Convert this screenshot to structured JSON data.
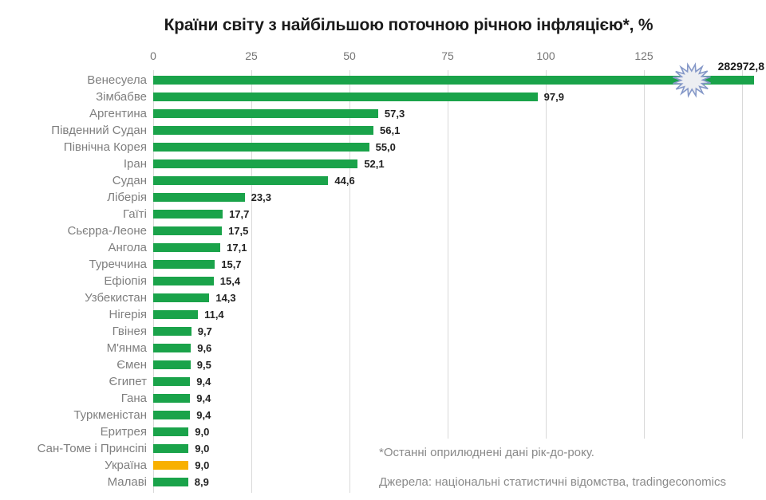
{
  "title": "Країни світу з найбільшою поточною річною інфляцією*, %",
  "chart_data": {
    "type": "bar",
    "orientation": "horizontal",
    "title": "Країни світу з найбільшою поточною річною інфляцією*, %",
    "xlabel": "",
    "ylabel": "",
    "xlim": [
      0,
      150
    ],
    "axis_tick_labels": [
      "0",
      "25",
      "50",
      "75",
      "100",
      "125"
    ],
    "axis_tick_values": [
      0,
      25,
      50,
      75,
      100,
      125
    ],
    "gridline_values": [
      0,
      25,
      50,
      75,
      100,
      125,
      150
    ],
    "grid": true,
    "legend": false,
    "categories": [
      "Венесуела",
      "Зімбабве",
      "Аргентина",
      "Південний Судан",
      "Північна Корея",
      "Іран",
      "Судан",
      "Ліберія",
      "Гаїті",
      "Сьєрра-Леоне",
      "Ангола",
      "Туреччина",
      "Ефіопія",
      "Узбекистан",
      "Нігерія",
      "Гвінея",
      "М'янма",
      "Ємен",
      "Єгипет",
      "Гана",
      "Туркменістан",
      "Еритрея",
      "Сан-Томе і Принсіпі",
      "Україна",
      "Малаві"
    ],
    "values": [
      282972.8,
      97.9,
      57.3,
      56.1,
      55.0,
      52.1,
      44.6,
      23.3,
      17.7,
      17.5,
      17.1,
      15.7,
      15.4,
      14.3,
      11.4,
      9.7,
      9.6,
      9.5,
      9.4,
      9.4,
      9.4,
      9.0,
      9.0,
      9.0,
      8.9
    ],
    "value_labels": [
      "282972,8",
      "97,9",
      "57,3",
      "56,1",
      "55,0",
      "52,1",
      "44,6",
      "23,3",
      "17,7",
      "17,5",
      "17,1",
      "15,7",
      "15,4",
      "14,3",
      "11,4",
      "9,7",
      "9,6",
      "9,5",
      "9,4",
      "9,4",
      "9,4",
      "9,0",
      "9,0",
      "9,0",
      "8,9"
    ],
    "highlight_category": "Україна",
    "broken_bar_category": "Венесуела",
    "colors": {
      "bar_default": "#1aa34a",
      "bar_highlight": "#f8b000",
      "gridline": "#d9d9d9",
      "category_label": "#7f7f7f",
      "axis_label": "#757575",
      "value_label": "#212121",
      "burst_fill": "#eceef2",
      "burst_stroke": "#8598c8"
    }
  },
  "footnotes": {
    "note": "*Останні  оприлюднені  дані рік-до-року.",
    "sources": "Джерела:  національні  статистичні  відомства, tradingeconomics"
  }
}
